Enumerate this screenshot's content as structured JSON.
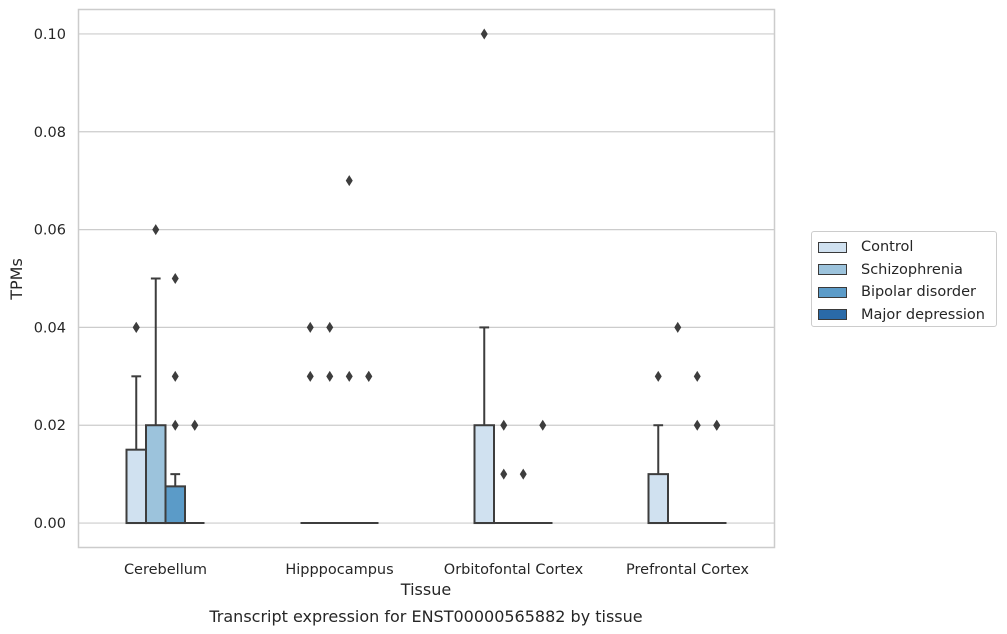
{
  "chart_data": {
    "type": "box",
    "title": "Transcript expression for ENST00000565882 by tissue",
    "xlabel": "Tissue",
    "ylabel": "TPMs",
    "ylim": [
      -0.005,
      0.105
    ],
    "yticks": [
      0.0,
      0.02,
      0.04,
      0.06,
      0.08,
      0.1
    ],
    "ytick_labels": [
      "0.00",
      "0.02",
      "0.04",
      "0.06",
      "0.08",
      "0.10"
    ],
    "categories": [
      "Cerebellum",
      "Hipppocampus",
      "Orbitofontal Cortex",
      "Prefrontal Cortex"
    ],
    "grid": "horizontal",
    "legend_position": "right",
    "series": [
      {
        "name": "Control",
        "color": "#d0e1f0",
        "boxes": [
          {
            "q1": 0.0,
            "median": 0.0,
            "q3": 0.015,
            "whisker_low": 0.0,
            "whisker_high": 0.03,
            "outliers": [
              0.04,
              0.04
            ]
          },
          {
            "q1": 0.0,
            "median": 0.0,
            "q3": 0.0,
            "whisker_low": 0.0,
            "whisker_high": 0.0,
            "outliers": [
              0.03,
              0.04
            ]
          },
          {
            "q1": 0.0,
            "median": 0.0,
            "q3": 0.02,
            "whisker_low": 0.0,
            "whisker_high": 0.04,
            "outliers": [
              0.1
            ]
          },
          {
            "q1": 0.0,
            "median": 0.0,
            "q3": 0.01,
            "whisker_low": 0.0,
            "whisker_high": 0.02,
            "outliers": [
              0.03
            ]
          }
        ]
      },
      {
        "name": "Schizophrenia",
        "color": "#9cc3dc",
        "boxes": [
          {
            "q1": 0.0,
            "median": 0.0,
            "q3": 0.02,
            "whisker_low": 0.0,
            "whisker_high": 0.05,
            "outliers": [
              0.06
            ]
          },
          {
            "q1": 0.0,
            "median": 0.0,
            "q3": 0.0,
            "whisker_low": 0.0,
            "whisker_high": 0.0,
            "outliers": [
              0.03,
              0.04
            ]
          },
          {
            "q1": 0.0,
            "median": 0.0,
            "q3": 0.0,
            "whisker_low": 0.0,
            "whisker_high": 0.0,
            "outliers": [
              0.01,
              0.02
            ]
          },
          {
            "q1": 0.0,
            "median": 0.0,
            "q3": 0.0,
            "whisker_low": 0.0,
            "whisker_high": 0.0,
            "outliers": [
              0.04
            ]
          }
        ]
      },
      {
        "name": "Bipolar disorder",
        "color": "#5b9bc8",
        "boxes": [
          {
            "q1": 0.0,
            "median": 0.0,
            "q3": 0.0075,
            "whisker_low": 0.0,
            "whisker_high": 0.01,
            "outliers": [
              0.02,
              0.03,
              0.05
            ]
          },
          {
            "q1": 0.0,
            "median": 0.0,
            "q3": 0.0,
            "whisker_low": 0.0,
            "whisker_high": 0.0,
            "outliers": [
              0.03,
              0.07
            ]
          },
          {
            "q1": 0.0,
            "median": 0.0,
            "q3": 0.0,
            "whisker_low": 0.0,
            "whisker_high": 0.0,
            "outliers": [
              0.01
            ]
          },
          {
            "q1": 0.0,
            "median": 0.0,
            "q3": 0.0,
            "whisker_low": 0.0,
            "whisker_high": 0.0,
            "outliers": [
              0.02,
              0.03
            ]
          }
        ]
      },
      {
        "name": "Major depression",
        "color": "#2a6aa8",
        "boxes": [
          {
            "q1": 0.0,
            "median": 0.0,
            "q3": 0.0,
            "whisker_low": 0.0,
            "whisker_high": 0.0,
            "outliers": [
              0.02,
              0.02
            ]
          },
          {
            "q1": 0.0,
            "median": 0.0,
            "q3": 0.0,
            "whisker_low": 0.0,
            "whisker_high": 0.0,
            "outliers": [
              0.03,
              0.03
            ]
          },
          {
            "q1": 0.0,
            "median": 0.0,
            "q3": 0.0,
            "whisker_low": 0.0,
            "whisker_high": 0.0,
            "outliers": [
              0.02
            ]
          },
          {
            "q1": 0.0,
            "median": 0.0,
            "q3": 0.0,
            "whisker_low": 0.0,
            "whisker_high": 0.0,
            "outliers": [
              0.02,
              0.02
            ]
          }
        ]
      }
    ]
  },
  "colors": {
    "grid": "#cccccc",
    "box_edge": "#3d3d3d",
    "frame": "#cccccc"
  }
}
